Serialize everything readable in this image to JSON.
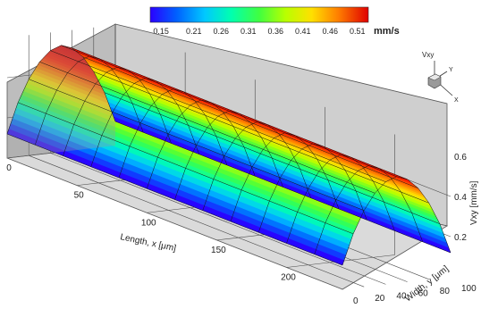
{
  "chart_data": {
    "type": "surface-3d",
    "colorbar": {
      "unit": "mm/s",
      "ticks": [
        "0.15",
        "0.21",
        "0.26",
        "0.31",
        "0.36",
        "0.41",
        "0.46",
        "0.51"
      ],
      "range": [
        0.13,
        0.53
      ],
      "colors": [
        "#2a00ff",
        "#0060ff",
        "#00c8ff",
        "#00ffb0",
        "#40ff40",
        "#b8ff00",
        "#ffe000",
        "#ff8000",
        "#ff2000",
        "#e00000"
      ]
    },
    "x_axis": {
      "label": "Length, x [μm]",
      "ticks": [
        "0",
        "50",
        "100",
        "150",
        "200"
      ],
      "range": [
        0,
        240
      ]
    },
    "y_axis": {
      "label": "Width, y [μm]",
      "ticks": [
        "0",
        "20",
        "40",
        "60",
        "80",
        "100"
      ],
      "range": [
        0,
        100
      ]
    },
    "z_axis": {
      "label": "Vxy [mm/s]",
      "ticks": [
        "0.2",
        "0.4",
        "0.6"
      ],
      "range": [
        0,
        0.6
      ]
    },
    "orientation_triad": {
      "vertical": "Vxy",
      "depth": "Y",
      "horizontal": "X"
    },
    "surface": {
      "description_values": "parabolic channel profile",
      "profile_across_width": {
        "y": [
          0,
          10,
          20,
          30,
          40,
          50,
          60,
          70,
          80,
          90,
          100
        ],
        "vxy": [
          0.12,
          0.27,
          0.38,
          0.46,
          0.51,
          0.53,
          0.51,
          0.46,
          0.38,
          0.27,
          0.12
        ]
      },
      "x_samples": [
        0,
        20,
        40,
        60,
        80,
        100,
        120,
        140,
        160,
        180,
        200,
        220,
        240
      ]
    },
    "grid": true
  }
}
